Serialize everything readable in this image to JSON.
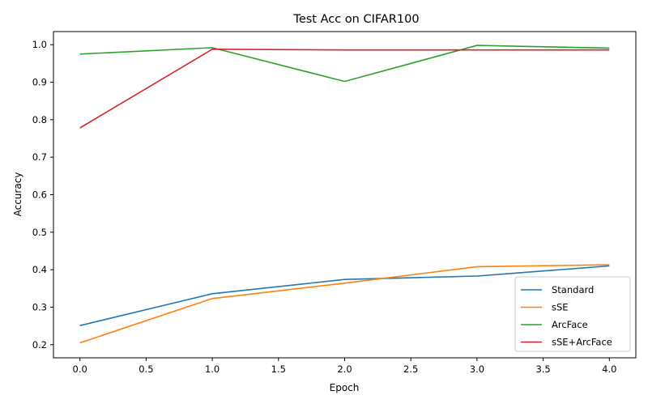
{
  "chart_data": {
    "type": "line",
    "title": "Test Acc on CIFAR100",
    "xlabel": "Epoch",
    "ylabel": "Accuracy",
    "x": [
      0,
      1,
      2,
      3,
      4
    ],
    "xlim": [
      -0.2,
      4.2
    ],
    "ylim": [
      0.165,
      1.035
    ],
    "xticks": [
      0.0,
      0.5,
      1.0,
      1.5,
      2.0,
      2.5,
      3.0,
      3.5,
      4.0
    ],
    "yticks": [
      0.2,
      0.3,
      0.4,
      0.5,
      0.6,
      0.7,
      0.8,
      0.9,
      1.0
    ],
    "grid": false,
    "legend_position": "lower right",
    "series": [
      {
        "name": "Standard",
        "color": "#1f77b4",
        "values": [
          0.251,
          0.336,
          0.374,
          0.383,
          0.41
        ]
      },
      {
        "name": "sSE",
        "color": "#ff7f0e",
        "values": [
          0.205,
          0.323,
          0.364,
          0.408,
          0.413
        ]
      },
      {
        "name": "ArcFace",
        "color": "#2ca02c",
        "values": [
          0.975,
          0.992,
          0.902,
          0.998,
          0.991
        ]
      },
      {
        "name": "sSE+ArcFace",
        "color": "#d62728",
        "values": [
          0.778,
          0.988,
          0.986,
          0.986,
          0.986
        ]
      }
    ]
  }
}
